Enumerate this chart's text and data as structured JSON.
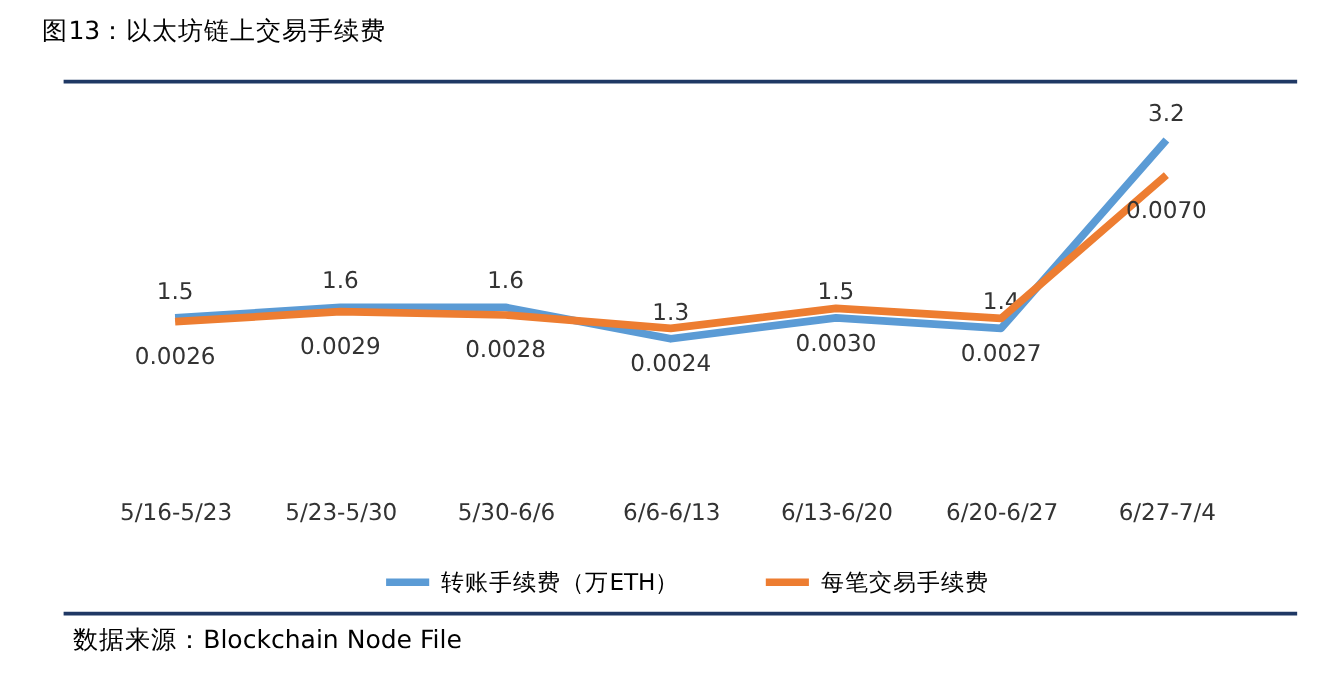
{
  "chart_data": {
    "type": "line",
    "title": "图13：以太坊链上交易手续费",
    "categories": [
      "5/16-5/23",
      "5/23-5/30",
      "5/30-6/6",
      "6/6-6/13",
      "6/13-6/20",
      "6/20-6/27",
      "6/27-7/4"
    ],
    "series": [
      {
        "name": "转账手续费（万ETH）",
        "color": "#5b9bd5",
        "values": [
          1.5,
          1.6,
          1.6,
          1.3,
          1.5,
          1.4,
          3.2
        ],
        "value_labels": [
          "1.5",
          "1.6",
          "1.6",
          "1.3",
          "1.5",
          "1.4",
          "3.2"
        ]
      },
      {
        "name": "每笔交易手续费",
        "color": "#ed7d31",
        "axis": "y2",
        "values": [
          0.0026,
          0.0029,
          0.0028,
          0.0024,
          0.003,
          0.0027,
          0.007
        ],
        "value_labels": [
          "0.0026",
          "0.0029",
          "0.0028",
          "0.0024",
          "0.0030",
          "0.0027",
          "0.0070"
        ]
      }
    ],
    "tick_labels": "x",
    "legend": "bottom",
    "marker": "none",
    "line_style": "solid",
    "annotations": [
      "数据来源：Blockchain Node File"
    ]
  }
}
